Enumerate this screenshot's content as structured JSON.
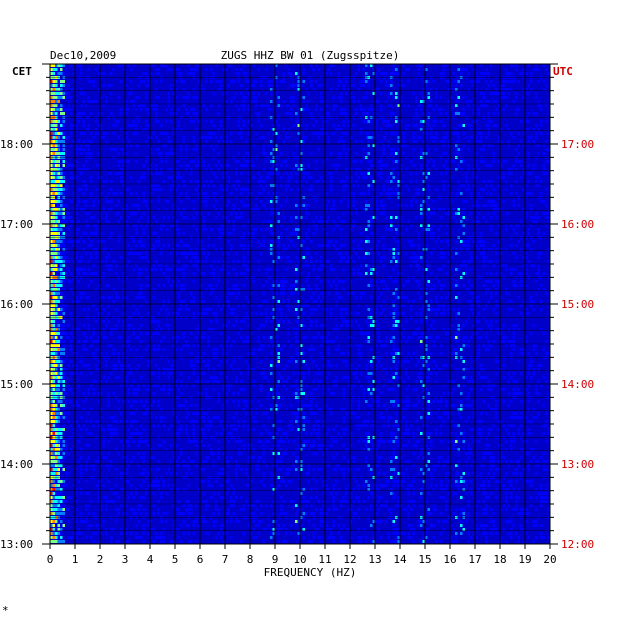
{
  "chart_data": {
    "type": "heatmap",
    "title": "ZUGS HHZ BW 01 (Zugsspitze)",
    "date_label": "Dec10,2009",
    "xlabel": "FREQUENCY (HZ)",
    "x_ticks": [
      "0",
      "1",
      "2",
      "3",
      "4",
      "5",
      "6",
      "7",
      "8",
      "9",
      "10",
      "11",
      "12",
      "13",
      "14",
      "15",
      "16",
      "17",
      "18",
      "19",
      "20"
    ],
    "xlim": [
      0,
      20
    ],
    "left_axis": {
      "label": "CET",
      "ticks": [
        "13:00",
        "14:00",
        "15:00",
        "16:00",
        "17:00",
        "18:00"
      ],
      "color": "#000000"
    },
    "right_axis": {
      "label": "UTC",
      "ticks": [
        "12:00",
        "13:00",
        "14:00",
        "15:00",
        "16:00",
        "17:00"
      ],
      "color": "#cc0000"
    },
    "colormap": [
      "#00008b",
      "#0000ff",
      "#0080ff",
      "#00ffff",
      "#80ff80",
      "#ffff00",
      "#ff8000",
      "#ff0000"
    ],
    "background_color": "#0000c8",
    "grid": true,
    "strong_bands_hz": [
      0.3,
      9.0,
      10.0,
      12.8,
      13.8,
      15.0,
      16.4
    ],
    "footnote": "*"
  }
}
